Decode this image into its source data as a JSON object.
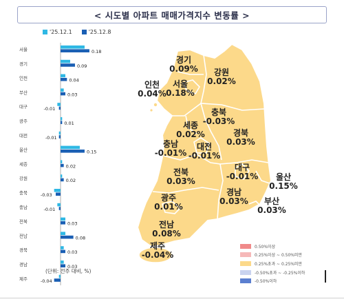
{
  "title": "< 시도별 아파트 매매가격지수 변동률 >",
  "chart_data": [
    {
      "type": "bar",
      "orientation": "horizontal",
      "categories": [
        "서울",
        "경기",
        "인천",
        "부산",
        "대구",
        "광주",
        "대전",
        "울산",
        "세종",
        "강원",
        "충북",
        "충남",
        "전북",
        "전남",
        "경북",
        "경남",
        "제주"
      ],
      "series": [
        {
          "name": "'25.12.1",
          "color": "#2fb8e4",
          "values": [
            0.15,
            0.06,
            0.03,
            0.02,
            -0.02,
            0.01,
            -0.01,
            0.12,
            0.01,
            0.01,
            -0.04,
            -0.02,
            0.03,
            0.03,
            0.02,
            0.02,
            -0.01
          ]
        },
        {
          "name": "'25.12.8",
          "color": "#1a5fb4",
          "values": [
            0.18,
            0.09,
            0.04,
            0.03,
            -0.01,
            0.01,
            -0.01,
            0.15,
            0.02,
            0.02,
            -0.03,
            -0.01,
            0.03,
            0.08,
            0.03,
            0.03,
            -0.04
          ]
        }
      ],
      "value_labels": [
        "0.18",
        "0.09",
        "0.04",
        "0.03",
        "-0.01",
        "0.01",
        "-0.01",
        "0.15",
        "0.02",
        "0.02",
        "-0.03",
        "-0.01",
        "0.03",
        "0.08",
        "0.03",
        "0.03",
        "-0.04"
      ],
      "unit_note": "(단위: 전주 대비, %)"
    },
    {
      "type": "choropleth-map",
      "regions": [
        {
          "name": "경기",
          "value": "0.09%"
        },
        {
          "name": "서울",
          "value": "0.18%"
        },
        {
          "name": "인천",
          "value": "0.04%"
        },
        {
          "name": "강원",
          "value": "0.02%"
        },
        {
          "name": "충북",
          "value": "-0.03%"
        },
        {
          "name": "세종",
          "value": "0.02%"
        },
        {
          "name": "충남",
          "value": "-0.01%"
        },
        {
          "name": "대전",
          "value": "-0.01%"
        },
        {
          "name": "경북",
          "value": "0.03%"
        },
        {
          "name": "대구",
          "value": "-0.01%"
        },
        {
          "name": "전북",
          "value": "0.03%"
        },
        {
          "name": "울산",
          "value": "0.15%"
        },
        {
          "name": "경남",
          "value": "0.03%"
        },
        {
          "name": "부산",
          "value": "0.03%"
        },
        {
          "name": "광주",
          "value": "0.01%"
        },
        {
          "name": "전남",
          "value": "0.08%"
        },
        {
          "name": "제주",
          "value": "-0.04%"
        }
      ],
      "fill_color": "#fcd98a",
      "legend": [
        {
          "label": "0.50%이상",
          "color": "#f08a8a"
        },
        {
          "label": "0.25%이상 ~ 0.50%미만",
          "color": "#f6b8b8"
        },
        {
          "label": "0.25%초과 ~ 0.25%미만",
          "color": "#fcd98a"
        },
        {
          "label": "-0.50%초과 ~ -0.25%이하",
          "color": "#c9d3ef"
        },
        {
          "label": "-0.50%이하",
          "color": "#5b7fd0"
        }
      ]
    }
  ]
}
